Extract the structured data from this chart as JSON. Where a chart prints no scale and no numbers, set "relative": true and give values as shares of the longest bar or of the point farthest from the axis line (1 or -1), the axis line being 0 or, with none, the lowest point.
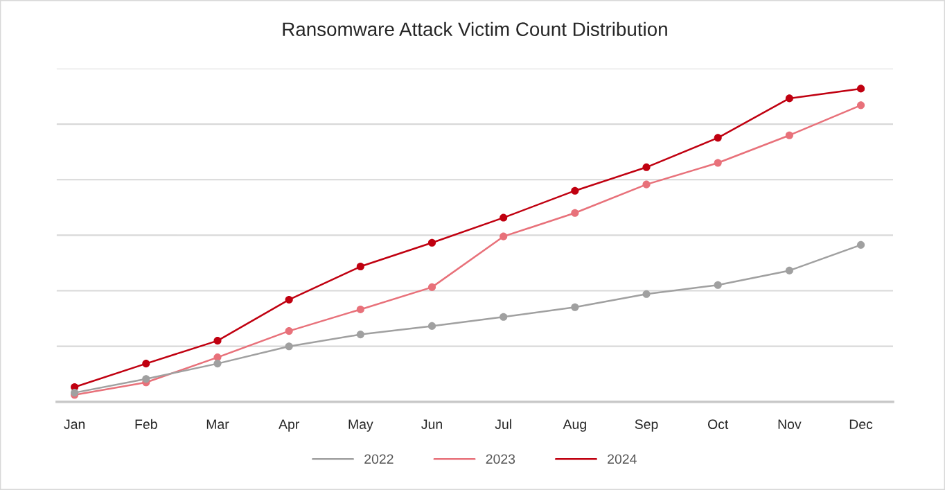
{
  "chart_data": {
    "type": "line",
    "title": "Ransomware Attack Victim Count Distribution",
    "relative": true,
    "grid": "y",
    "legend": "bottom",
    "marker": "circle",
    "line_style": "solid",
    "categories": [
      "Jan",
      "Feb",
      "Mar",
      "Apr",
      "May",
      "Jun",
      "Jul",
      "Aug",
      "Sep",
      "Oct",
      "Nov",
      "Dec"
    ],
    "series": [
      {
        "name": "2022",
        "color": "#a0a0a0",
        "values": [
          0.029,
          0.073,
          0.122,
          0.177,
          0.215,
          0.242,
          0.271,
          0.302,
          0.344,
          0.373,
          0.419,
          0.501
        ]
      },
      {
        "name": "2023",
        "color": "#e8717a",
        "values": [
          0.022,
          0.062,
          0.142,
          0.226,
          0.295,
          0.366,
          0.528,
          0.603,
          0.694,
          0.763,
          0.851,
          0.947
        ]
      },
      {
        "name": "2024",
        "color": "#c00010",
        "values": [
          0.047,
          0.122,
          0.195,
          0.326,
          0.432,
          0.508,
          0.588,
          0.674,
          0.749,
          0.843,
          0.969,
          1
        ]
      }
    ]
  }
}
